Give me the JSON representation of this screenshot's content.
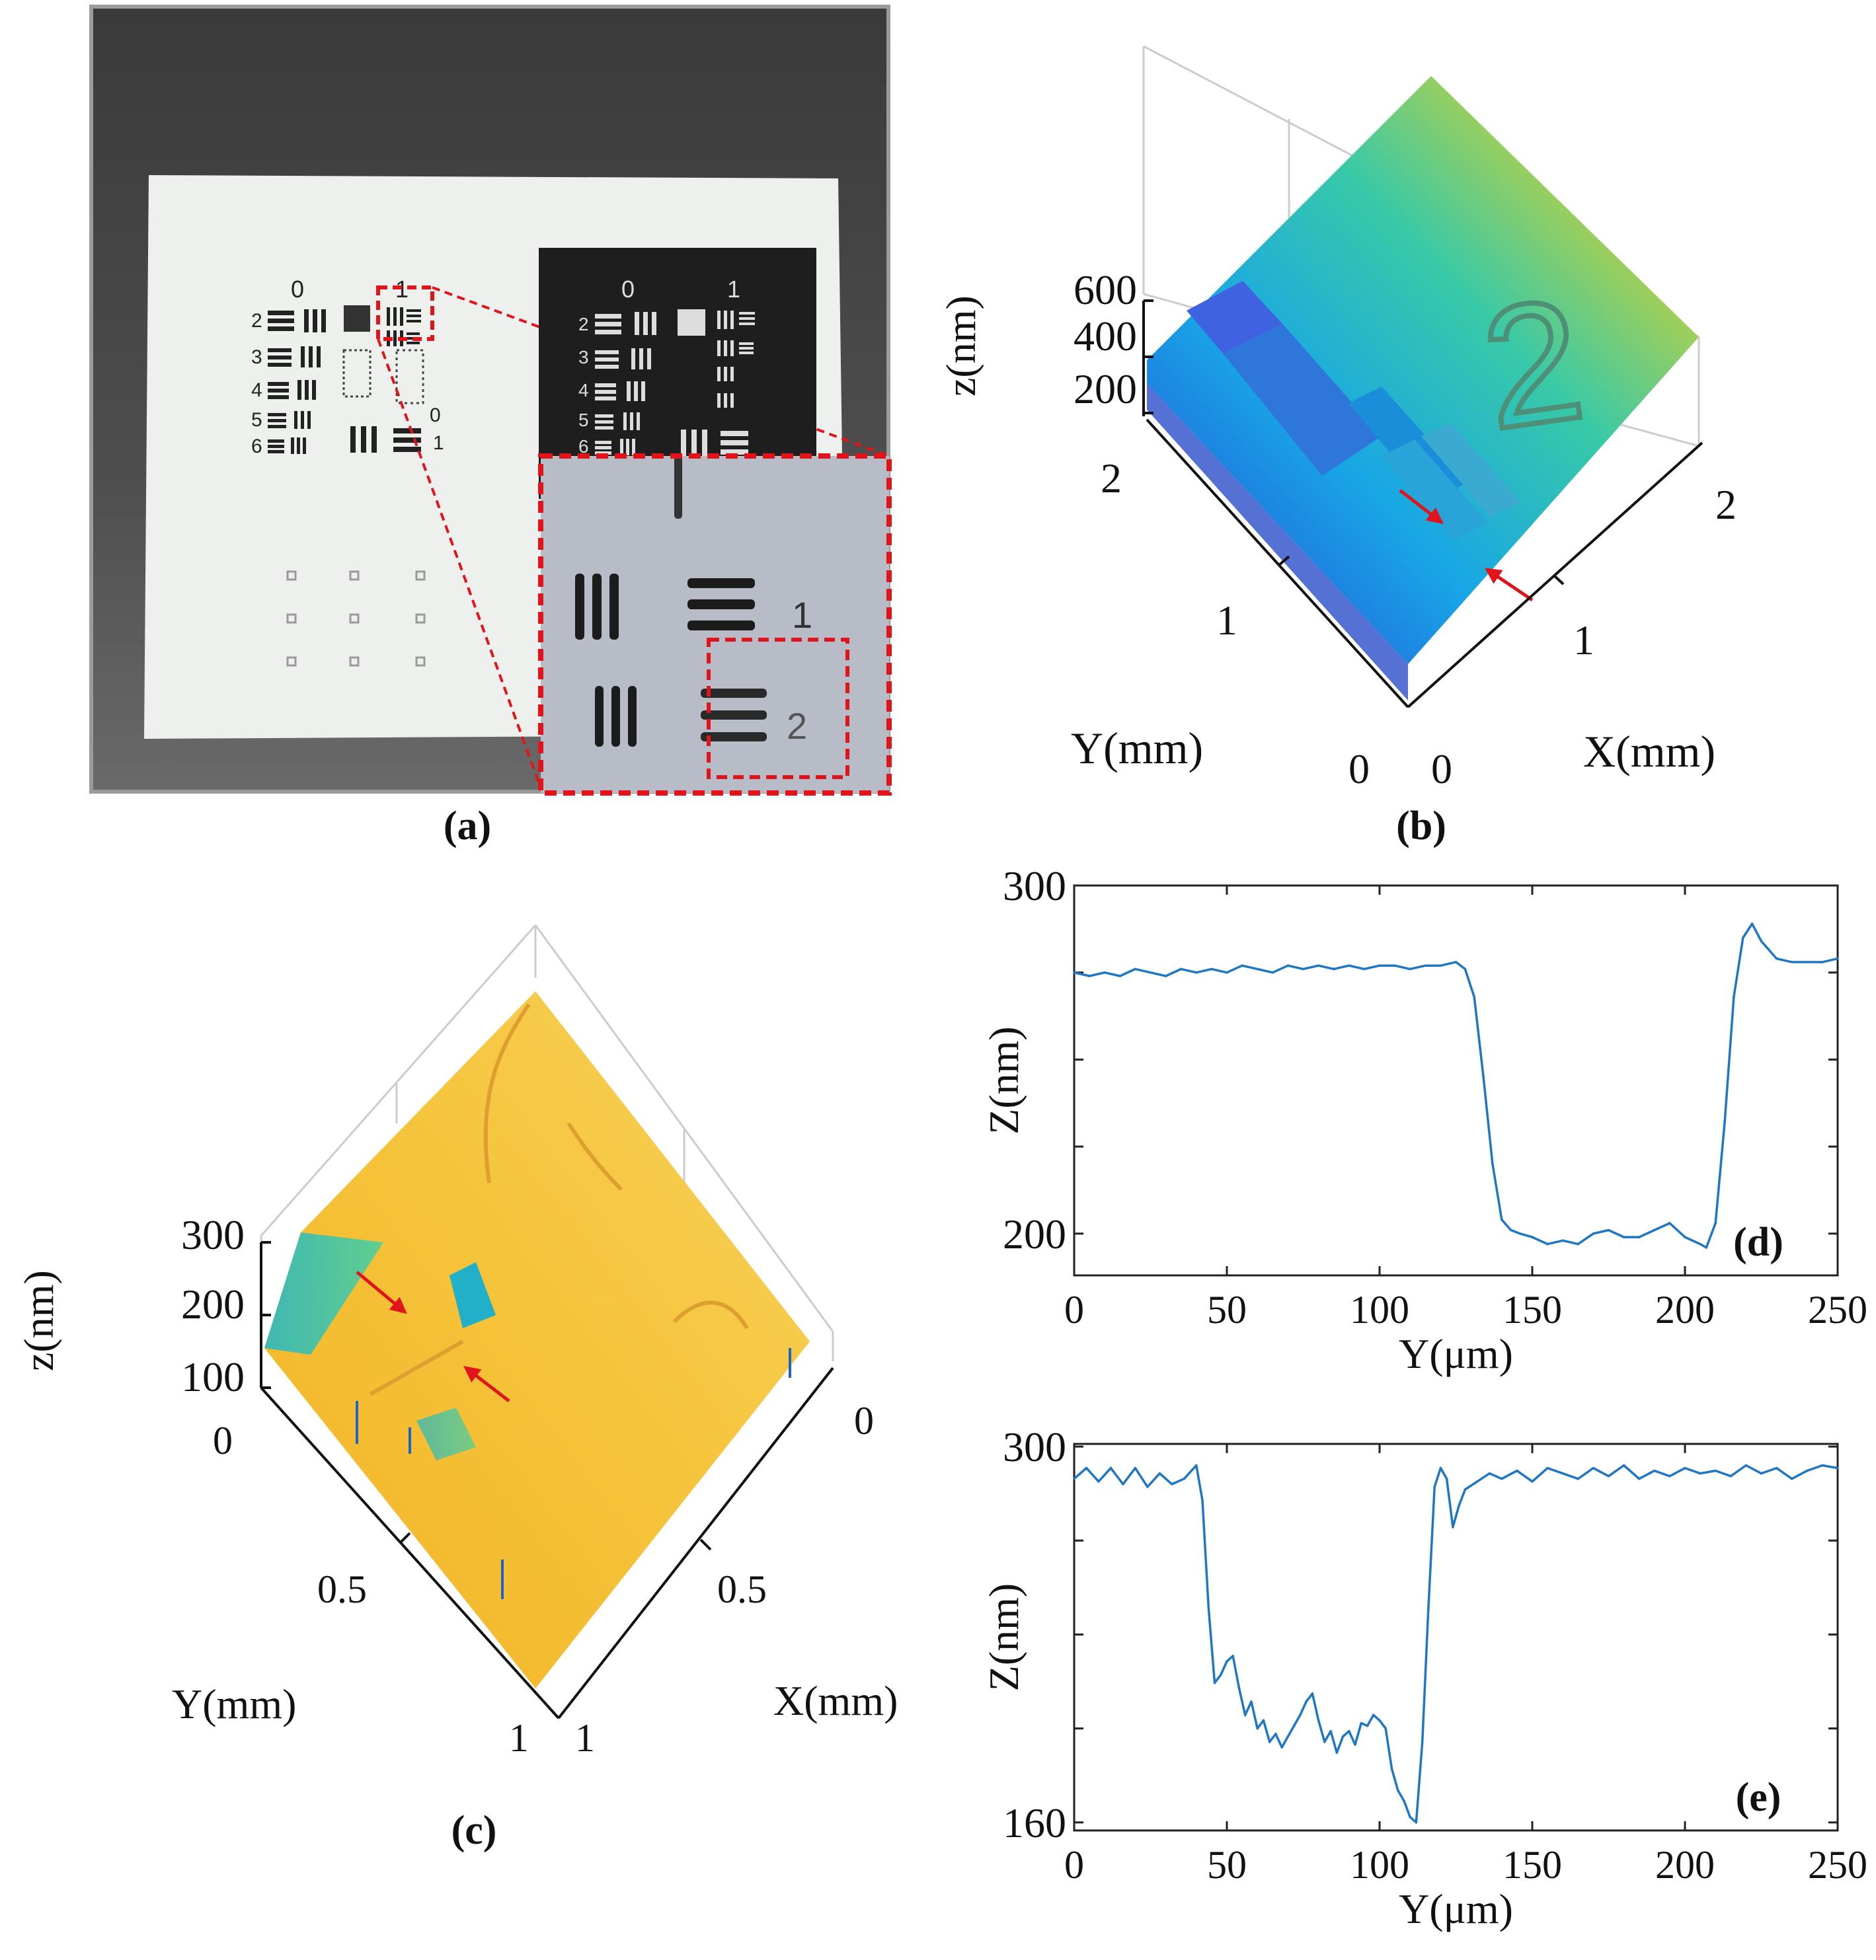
{
  "panels": {
    "a": {
      "label": "(a)",
      "target_numbers": {
        "group0": "0",
        "group1": "1",
        "elem2": "2",
        "elem3": "3",
        "elem4": "4",
        "elem5": "5",
        "elem6": "6",
        "right0": "0",
        "right1": "1"
      },
      "inset_numbers": {
        "group0": "0",
        "group1": "1",
        "elem2": "2",
        "elem3": "3",
        "elem4": "4",
        "elem5": "5",
        "elem6": "6"
      },
      "zoom_numbers": {
        "elem1": "1",
        "elem2": "2"
      }
    },
    "b": {
      "label": "(b)",
      "zlabel": "z(nm)",
      "zticks": [
        "600",
        "400",
        "200"
      ],
      "ylabel": "Y(mm)",
      "yticks": [
        "2",
        "1",
        "0"
      ],
      "xlabel": "X(mm)",
      "xticks": [
        "0",
        "1",
        "2"
      ],
      "surface_numeral": "2"
    },
    "c": {
      "label": "(c)",
      "zlabel": "z(nm)",
      "zticks": [
        "300",
        "200",
        "100"
      ],
      "ylabel": "Y(mm)",
      "yticks": [
        "0",
        "0.5",
        "1"
      ],
      "xlabel": "X(mm)",
      "xticks": [
        "0",
        "0.5",
        "1"
      ]
    }
  },
  "chart_data": [
    {
      "id": "d",
      "type": "line",
      "label": "(d)",
      "xlabel": "Y(μm)",
      "ylabel": "Z(nm)",
      "xlim": [
        0,
        250
      ],
      "ylim": [
        188,
        300
      ],
      "xticks": [
        0,
        50,
        100,
        150,
        200,
        250
      ],
      "yticks": [
        200,
        300
      ],
      "color": "#1f77c4",
      "x": [
        0,
        5,
        10,
        15,
        20,
        25,
        30,
        35,
        40,
        45,
        50,
        55,
        60,
        65,
        70,
        75,
        80,
        85,
        90,
        95,
        100,
        105,
        110,
        115,
        120,
        125,
        128,
        131,
        134,
        137,
        140,
        143,
        146,
        150,
        155,
        160,
        165,
        170,
        175,
        180,
        185,
        190,
        195,
        200,
        205,
        207,
        210,
        213,
        216,
        219,
        222,
        225,
        230,
        235,
        240,
        245,
        250
      ],
      "values": [
        275,
        274,
        275,
        274,
        276,
        275,
        274,
        276,
        275,
        276,
        275,
        277,
        276,
        275,
        277,
        276,
        277,
        276,
        277,
        276,
        277,
        277,
        276,
        277,
        277,
        278,
        276,
        268,
        245,
        220,
        204,
        201,
        200,
        199,
        197,
        198,
        197,
        200,
        201,
        199,
        199,
        201,
        203,
        199,
        197,
        196,
        203,
        232,
        268,
        285,
        289,
        284,
        279,
        278,
        278,
        278,
        279
      ]
    },
    {
      "id": "e",
      "type": "line",
      "label": "(e)",
      "xlabel": "Y(μm)",
      "ylabel": "Z(nm)",
      "xlim": [
        0,
        250
      ],
      "ylim": [
        157,
        301
      ],
      "xticks": [
        0,
        50,
        100,
        150,
        200,
        250
      ],
      "yticks": [
        160,
        300
      ],
      "color": "#1f77c4",
      "x": [
        0,
        4,
        8,
        12,
        16,
        20,
        24,
        28,
        32,
        36,
        40,
        42,
        44,
        46,
        48,
        50,
        52,
        54,
        56,
        58,
        60,
        62,
        64,
        66,
        68,
        70,
        72,
        74,
        76,
        78,
        80,
        82,
        84,
        86,
        88,
        90,
        92,
        94,
        96,
        98,
        100,
        102,
        104,
        106,
        108,
        110,
        112,
        114,
        116,
        118,
        120,
        122,
        124,
        126,
        128,
        132,
        136,
        140,
        145,
        150,
        155,
        160,
        165,
        170,
        175,
        180,
        185,
        190,
        195,
        200,
        205,
        210,
        215,
        220,
        225,
        230,
        235,
        240,
        245,
        250
      ],
      "values": [
        288,
        292,
        287,
        292,
        286,
        292,
        285,
        290,
        286,
        288,
        293,
        280,
        240,
        212,
        215,
        220,
        222,
        210,
        200,
        205,
        195,
        198,
        190,
        193,
        188,
        192,
        196,
        200,
        205,
        208,
        198,
        190,
        194,
        186,
        192,
        194,
        189,
        197,
        196,
        200,
        198,
        195,
        180,
        172,
        168,
        162,
        160,
        190,
        240,
        285,
        292,
        288,
        270,
        278,
        284,
        287,
        290,
        288,
        291,
        287,
        292,
        290,
        288,
        292,
        289,
        293,
        288,
        291,
        289,
        292,
        290,
        291,
        289,
        293,
        290,
        292,
        288,
        291,
        293,
        292
      ]
    }
  ]
}
